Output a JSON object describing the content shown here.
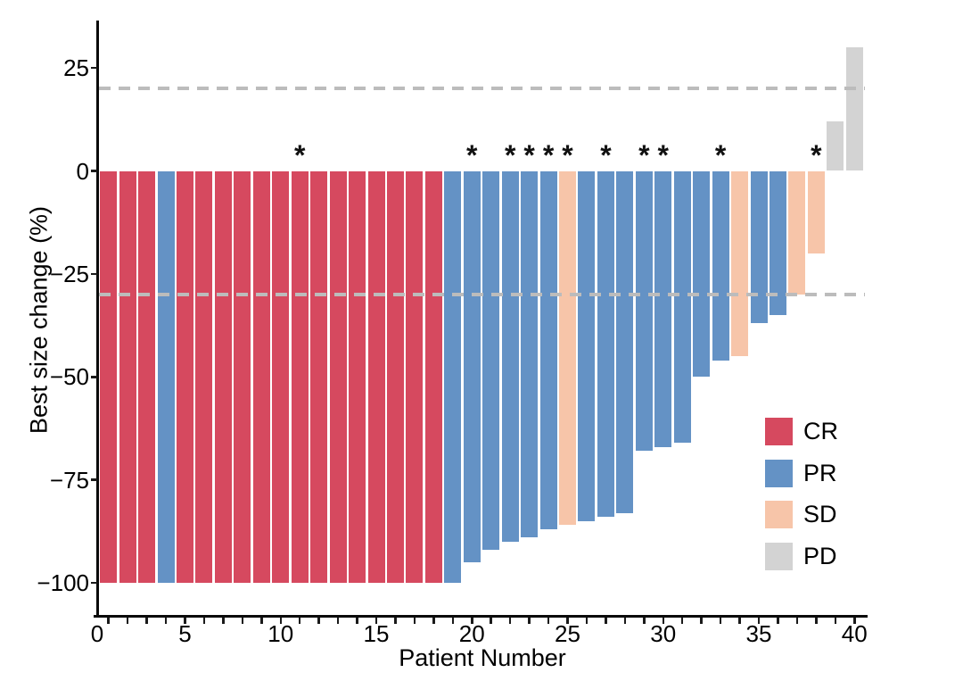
{
  "chart_data": {
    "type": "bar",
    "variant": "waterfall",
    "title": "",
    "xlabel": "Patient Number",
    "ylabel": "Best size change (%)",
    "grid": false,
    "xlim": [
      0,
      40.6
    ],
    "ylim": [
      -108,
      38
    ],
    "x_ticks": [
      {
        "value": 0,
        "label": "0"
      },
      {
        "value": 5,
        "label": "5"
      },
      {
        "value": 10,
        "label": "10"
      },
      {
        "value": 15,
        "label": "15"
      },
      {
        "value": 20,
        "label": "20"
      },
      {
        "value": 25,
        "label": "25"
      },
      {
        "value": 30,
        "label": "30"
      },
      {
        "value": 35,
        "label": "35"
      },
      {
        "value": 40,
        "label": "40"
      }
    ],
    "y_ticks": [
      {
        "value": 25,
        "label": "25"
      },
      {
        "value": 0,
        "label": "0"
      },
      {
        "value": -25,
        "label": "−25"
      },
      {
        "value": -50,
        "label": "−50"
      },
      {
        "value": -75,
        "label": "−75"
      },
      {
        "value": -100,
        "label": "−100"
      }
    ],
    "reference_lines": {
      "values": [
        20,
        -30
      ],
      "style": "dashed",
      "color": "#bcbcbc"
    },
    "flag_symbol": "*",
    "legend": {
      "position": "inside-right",
      "entries": [
        {
          "label": "CR",
          "color": "#d6495f"
        },
        {
          "label": "PR",
          "color": "#6492c5"
        },
        {
          "label": "SD",
          "color": "#f7c5a9"
        },
        {
          "label": "PD",
          "color": "#d3d3d3"
        }
      ]
    },
    "bars": [
      {
        "patient": 1,
        "value": -100,
        "response": "CR",
        "flag": false
      },
      {
        "patient": 2,
        "value": -100,
        "response": "CR",
        "flag": false
      },
      {
        "patient": 3,
        "value": -100,
        "response": "CR",
        "flag": false
      },
      {
        "patient": 4,
        "value": -100,
        "response": "PR",
        "flag": false
      },
      {
        "patient": 5,
        "value": -100,
        "response": "CR",
        "flag": false
      },
      {
        "patient": 6,
        "value": -100,
        "response": "CR",
        "flag": false
      },
      {
        "patient": 7,
        "value": -100,
        "response": "CR",
        "flag": false
      },
      {
        "patient": 8,
        "value": -100,
        "response": "CR",
        "flag": false
      },
      {
        "patient": 9,
        "value": -100,
        "response": "CR",
        "flag": false
      },
      {
        "patient": 10,
        "value": -100,
        "response": "CR",
        "flag": false
      },
      {
        "patient": 11,
        "value": -100,
        "response": "CR",
        "flag": true
      },
      {
        "patient": 12,
        "value": -100,
        "response": "CR",
        "flag": false
      },
      {
        "patient": 13,
        "value": -100,
        "response": "CR",
        "flag": false
      },
      {
        "patient": 14,
        "value": -100,
        "response": "CR",
        "flag": false
      },
      {
        "patient": 15,
        "value": -100,
        "response": "CR",
        "flag": false
      },
      {
        "patient": 16,
        "value": -100,
        "response": "CR",
        "flag": false
      },
      {
        "patient": 17,
        "value": -100,
        "response": "CR",
        "flag": false
      },
      {
        "patient": 18,
        "value": -100,
        "response": "CR",
        "flag": false
      },
      {
        "patient": 19,
        "value": -100,
        "response": "PR",
        "flag": false
      },
      {
        "patient": 20,
        "value": -95,
        "response": "PR",
        "flag": true
      },
      {
        "patient": 21,
        "value": -92,
        "response": "PR",
        "flag": false
      },
      {
        "patient": 22,
        "value": -90,
        "response": "PR",
        "flag": true
      },
      {
        "patient": 23,
        "value": -89,
        "response": "PR",
        "flag": true
      },
      {
        "patient": 24,
        "value": -87,
        "response": "PR",
        "flag": true
      },
      {
        "patient": 25,
        "value": -86,
        "response": "SD",
        "flag": true
      },
      {
        "patient": 26,
        "value": -85,
        "response": "PR",
        "flag": false
      },
      {
        "patient": 27,
        "value": -84,
        "response": "PR",
        "flag": true
      },
      {
        "patient": 28,
        "value": -83,
        "response": "PR",
        "flag": false
      },
      {
        "patient": 29,
        "value": -68,
        "response": "PR",
        "flag": true
      },
      {
        "patient": 30,
        "value": -67,
        "response": "PR",
        "flag": true
      },
      {
        "patient": 31,
        "value": -66,
        "response": "PR",
        "flag": false
      },
      {
        "patient": 32,
        "value": -50,
        "response": "PR",
        "flag": false
      },
      {
        "patient": 33,
        "value": -46,
        "response": "PR",
        "flag": true
      },
      {
        "patient": 34,
        "value": -45,
        "response": "SD",
        "flag": false
      },
      {
        "patient": 35,
        "value": -37,
        "response": "PR",
        "flag": false
      },
      {
        "patient": 36,
        "value": -35,
        "response": "PR",
        "flag": false
      },
      {
        "patient": 37,
        "value": -30,
        "response": "SD",
        "flag": false
      },
      {
        "patient": 38,
        "value": -20,
        "response": "SD",
        "flag": true
      },
      {
        "patient": 39,
        "value": 12,
        "response": "PD",
        "flag": false
      },
      {
        "patient": 40,
        "value": 30,
        "response": "PD",
        "flag": false
      }
    ]
  }
}
